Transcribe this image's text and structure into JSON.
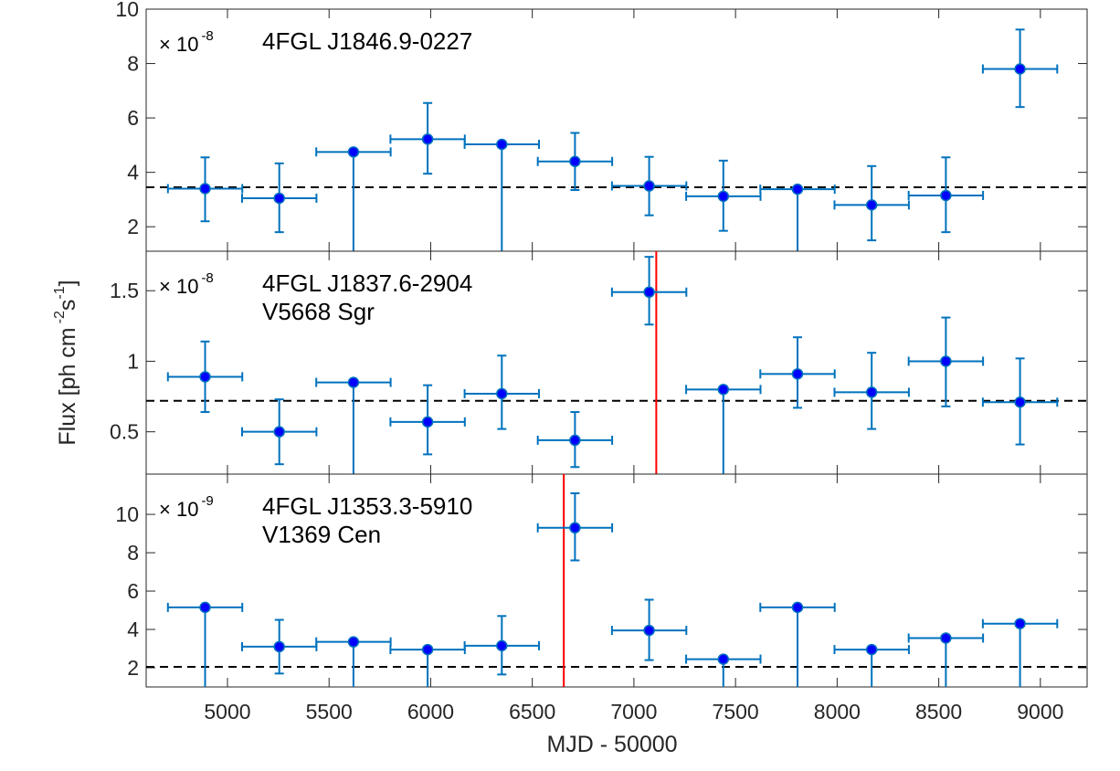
{
  "chart_data": {
    "type": "scatter",
    "xlabel": "MJD - 50000",
    "ylabel": "Flux [ph cm",
    "ylabel_exp1": "-2",
    "ylabel_s": "s",
    "ylabel_exp2": "-1",
    "ylabel_close": "]",
    "xlim": [
      4600,
      9230
    ],
    "xticks": [
      "5000",
      "5500",
      "6000",
      "6500",
      "7000",
      "7500",
      "8000",
      "8500",
      "9000"
    ],
    "xtick_values": [
      5000,
      5500,
      6000,
      6500,
      7000,
      7500,
      8000,
      8500,
      9000
    ],
    "colors": {
      "marker": "#0000ff",
      "errorbar": "#0072bd",
      "nova_line": "#ff0000",
      "mean_line": "#000000"
    },
    "x_halfwidth": 183,
    "panels": [
      {
        "name": "4FGL J1846.9-0227",
        "label_lines": [
          "4FGL J1846.9-0227"
        ],
        "multiplier_base": "× 10",
        "multiplier_exp": "-8",
        "ylim": [
          1.1,
          10
        ],
        "yticks": [
          "2",
          "4",
          "6",
          "8",
          "10"
        ],
        "ytick_values": [
          2,
          4,
          6,
          8,
          10
        ],
        "mean": 3.45,
        "nova_mjd": null,
        "x": [
          4890,
          5255,
          5620,
          5985,
          6350,
          6710,
          7075,
          7440,
          7805,
          8170,
          8535,
          8900
        ],
        "y": [
          3.4,
          3.05,
          4.75,
          5.22,
          5.03,
          4.4,
          3.5,
          3.12,
          3.38,
          2.8,
          3.15,
          7.8
        ],
        "y_lo": [
          2.2,
          1.8,
          0,
          3.95,
          0,
          3.35,
          2.42,
          1.85,
          0,
          1.5,
          1.8,
          6.4
        ],
        "y_hi": [
          4.55,
          4.33,
          4.75,
          6.55,
          5.03,
          5.45,
          4.57,
          4.43,
          3.38,
          4.23,
          4.55,
          9.25
        ]
      },
      {
        "name": "4FGL J1837.6-2904",
        "label_lines": [
          "4FGL J1837.6-2904",
          "V5668 Sgr"
        ],
        "multiplier_base": "× 10",
        "multiplier_exp": "-8",
        "ylim": [
          0.2,
          1.78
        ],
        "yticks": [
          "0.5",
          "1",
          "1.5"
        ],
        "ytick_values": [
          0.5,
          1,
          1.5
        ],
        "mean": 0.72,
        "nova_mjd": 7110,
        "x": [
          4890,
          5255,
          5620,
          5985,
          6350,
          6710,
          7075,
          7440,
          7805,
          8170,
          8535,
          8900
        ],
        "y": [
          0.89,
          0.5,
          0.85,
          0.57,
          0.77,
          0.44,
          1.49,
          0.8,
          0.91,
          0.78,
          1.0,
          0.71
        ],
        "y_lo": [
          0.64,
          0.27,
          0,
          0.34,
          0.52,
          0.25,
          1.26,
          0,
          0.67,
          0.52,
          0.68,
          0.41
        ],
        "y_hi": [
          1.14,
          0.73,
          0.85,
          0.83,
          1.04,
          0.64,
          1.74,
          0.8,
          1.17,
          1.06,
          1.31,
          1.02
        ]
      },
      {
        "name": "4FGL J1353.3-5910",
        "label_lines": [
          "4FGL J1353.3-5910",
          "V1369 Cen"
        ],
        "multiplier_base": "× 10",
        "multiplier_exp": "-9",
        "ylim": [
          1,
          12.1
        ],
        "yticks": [
          "2",
          "4",
          "6",
          "8",
          "10"
        ],
        "ytick_values": [
          2,
          4,
          6,
          8,
          10
        ],
        "mean": 2.05,
        "nova_mjd": 6655,
        "x": [
          4890,
          5255,
          5620,
          5985,
          6350,
          6710,
          7075,
          7440,
          7805,
          8170,
          8535,
          8900
        ],
        "y": [
          5.15,
          3.1,
          3.35,
          2.95,
          3.15,
          9.3,
          3.95,
          2.45,
          5.15,
          2.95,
          3.55,
          4.3
        ],
        "y_lo": [
          0,
          1.7,
          0,
          0,
          1.65,
          7.6,
          2.4,
          0,
          0,
          0,
          0,
          0
        ],
        "y_hi": [
          5.15,
          4.5,
          3.35,
          2.95,
          4.7,
          11.1,
          5.55,
          2.45,
          5.15,
          2.95,
          3.55,
          4.3
        ]
      }
    ]
  }
}
